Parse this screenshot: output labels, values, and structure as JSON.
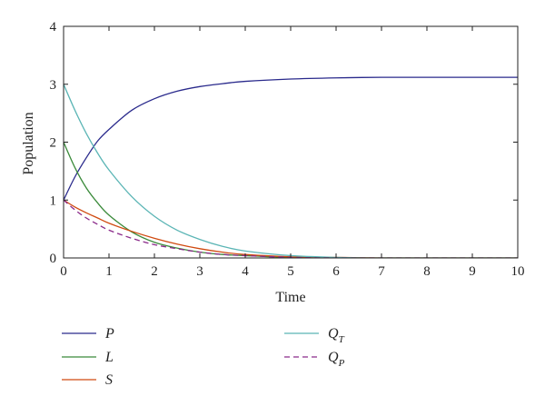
{
  "chart_data": {
    "type": "line",
    "title": "",
    "xlabel": "Time",
    "ylabel": "Population",
    "xlim": [
      0,
      10
    ],
    "ylim": [
      0,
      4
    ],
    "xticks": [
      0,
      1,
      2,
      3,
      4,
      5,
      6,
      7,
      8,
      9,
      10
    ],
    "yticks": [
      0,
      1,
      2,
      3,
      4
    ],
    "grid": false,
    "legend_position": "bottom",
    "series": [
      {
        "name": "P",
        "color": "#2a2a8c",
        "dash": "solid",
        "x": [
          0,
          0.25,
          0.5,
          0.75,
          1,
          1.5,
          2,
          2.5,
          3,
          3.5,
          4,
          5,
          6,
          7,
          8,
          9,
          10
        ],
        "y": [
          1.0,
          1.4,
          1.73,
          2.02,
          2.22,
          2.55,
          2.75,
          2.88,
          2.96,
          3.01,
          3.05,
          3.09,
          3.11,
          3.12,
          3.12,
          3.12,
          3.12
        ]
      },
      {
        "name": "L",
        "color": "#3a8a3a",
        "dash": "solid",
        "x": [
          0,
          0.25,
          0.5,
          0.75,
          1,
          1.5,
          2,
          2.5,
          3,
          3.5,
          4,
          5,
          6,
          7,
          8,
          9,
          10
        ],
        "y": [
          2.0,
          1.56,
          1.21,
          0.95,
          0.74,
          0.45,
          0.27,
          0.17,
          0.1,
          0.06,
          0.04,
          0.01,
          0.0,
          0.0,
          0.0,
          0.0,
          0.0
        ]
      },
      {
        "name": "S",
        "color": "#d04a10",
        "dash": "solid",
        "x": [
          0,
          0.25,
          0.5,
          0.75,
          1,
          1.5,
          2,
          2.5,
          3,
          3.5,
          4,
          5,
          6,
          7,
          8,
          9,
          10
        ],
        "y": [
          1.0,
          0.88,
          0.78,
          0.69,
          0.6,
          0.46,
          0.34,
          0.24,
          0.16,
          0.1,
          0.06,
          0.02,
          0.01,
          0.0,
          0.0,
          0.0,
          0.0
        ]
      },
      {
        "name": "Q_T",
        "label_main": "Q",
        "label_sub": "T",
        "color": "#5bb5b5",
        "dash": "solid",
        "x": [
          0,
          0.25,
          0.5,
          0.75,
          1,
          1.5,
          2,
          2.5,
          3,
          3.5,
          4,
          5,
          6,
          7,
          8,
          9,
          10
        ],
        "y": [
          3.0,
          2.55,
          2.15,
          1.81,
          1.52,
          1.06,
          0.72,
          0.48,
          0.32,
          0.2,
          0.12,
          0.04,
          0.01,
          0.0,
          0.0,
          0.0,
          0.0
        ]
      },
      {
        "name": "Q_P",
        "label_main": "Q",
        "label_sub": "P",
        "color": "#8a2a8a",
        "dash": "dashed",
        "x": [
          0,
          0.25,
          0.5,
          0.75,
          1,
          1.5,
          2,
          2.5,
          3,
          3.5,
          4,
          5,
          6,
          7,
          8,
          9,
          10
        ],
        "y": [
          1.0,
          0.83,
          0.69,
          0.58,
          0.48,
          0.34,
          0.23,
          0.16,
          0.1,
          0.06,
          0.04,
          0.01,
          0.0,
          0.0,
          0.0,
          0.0,
          0.0
        ]
      }
    ]
  }
}
